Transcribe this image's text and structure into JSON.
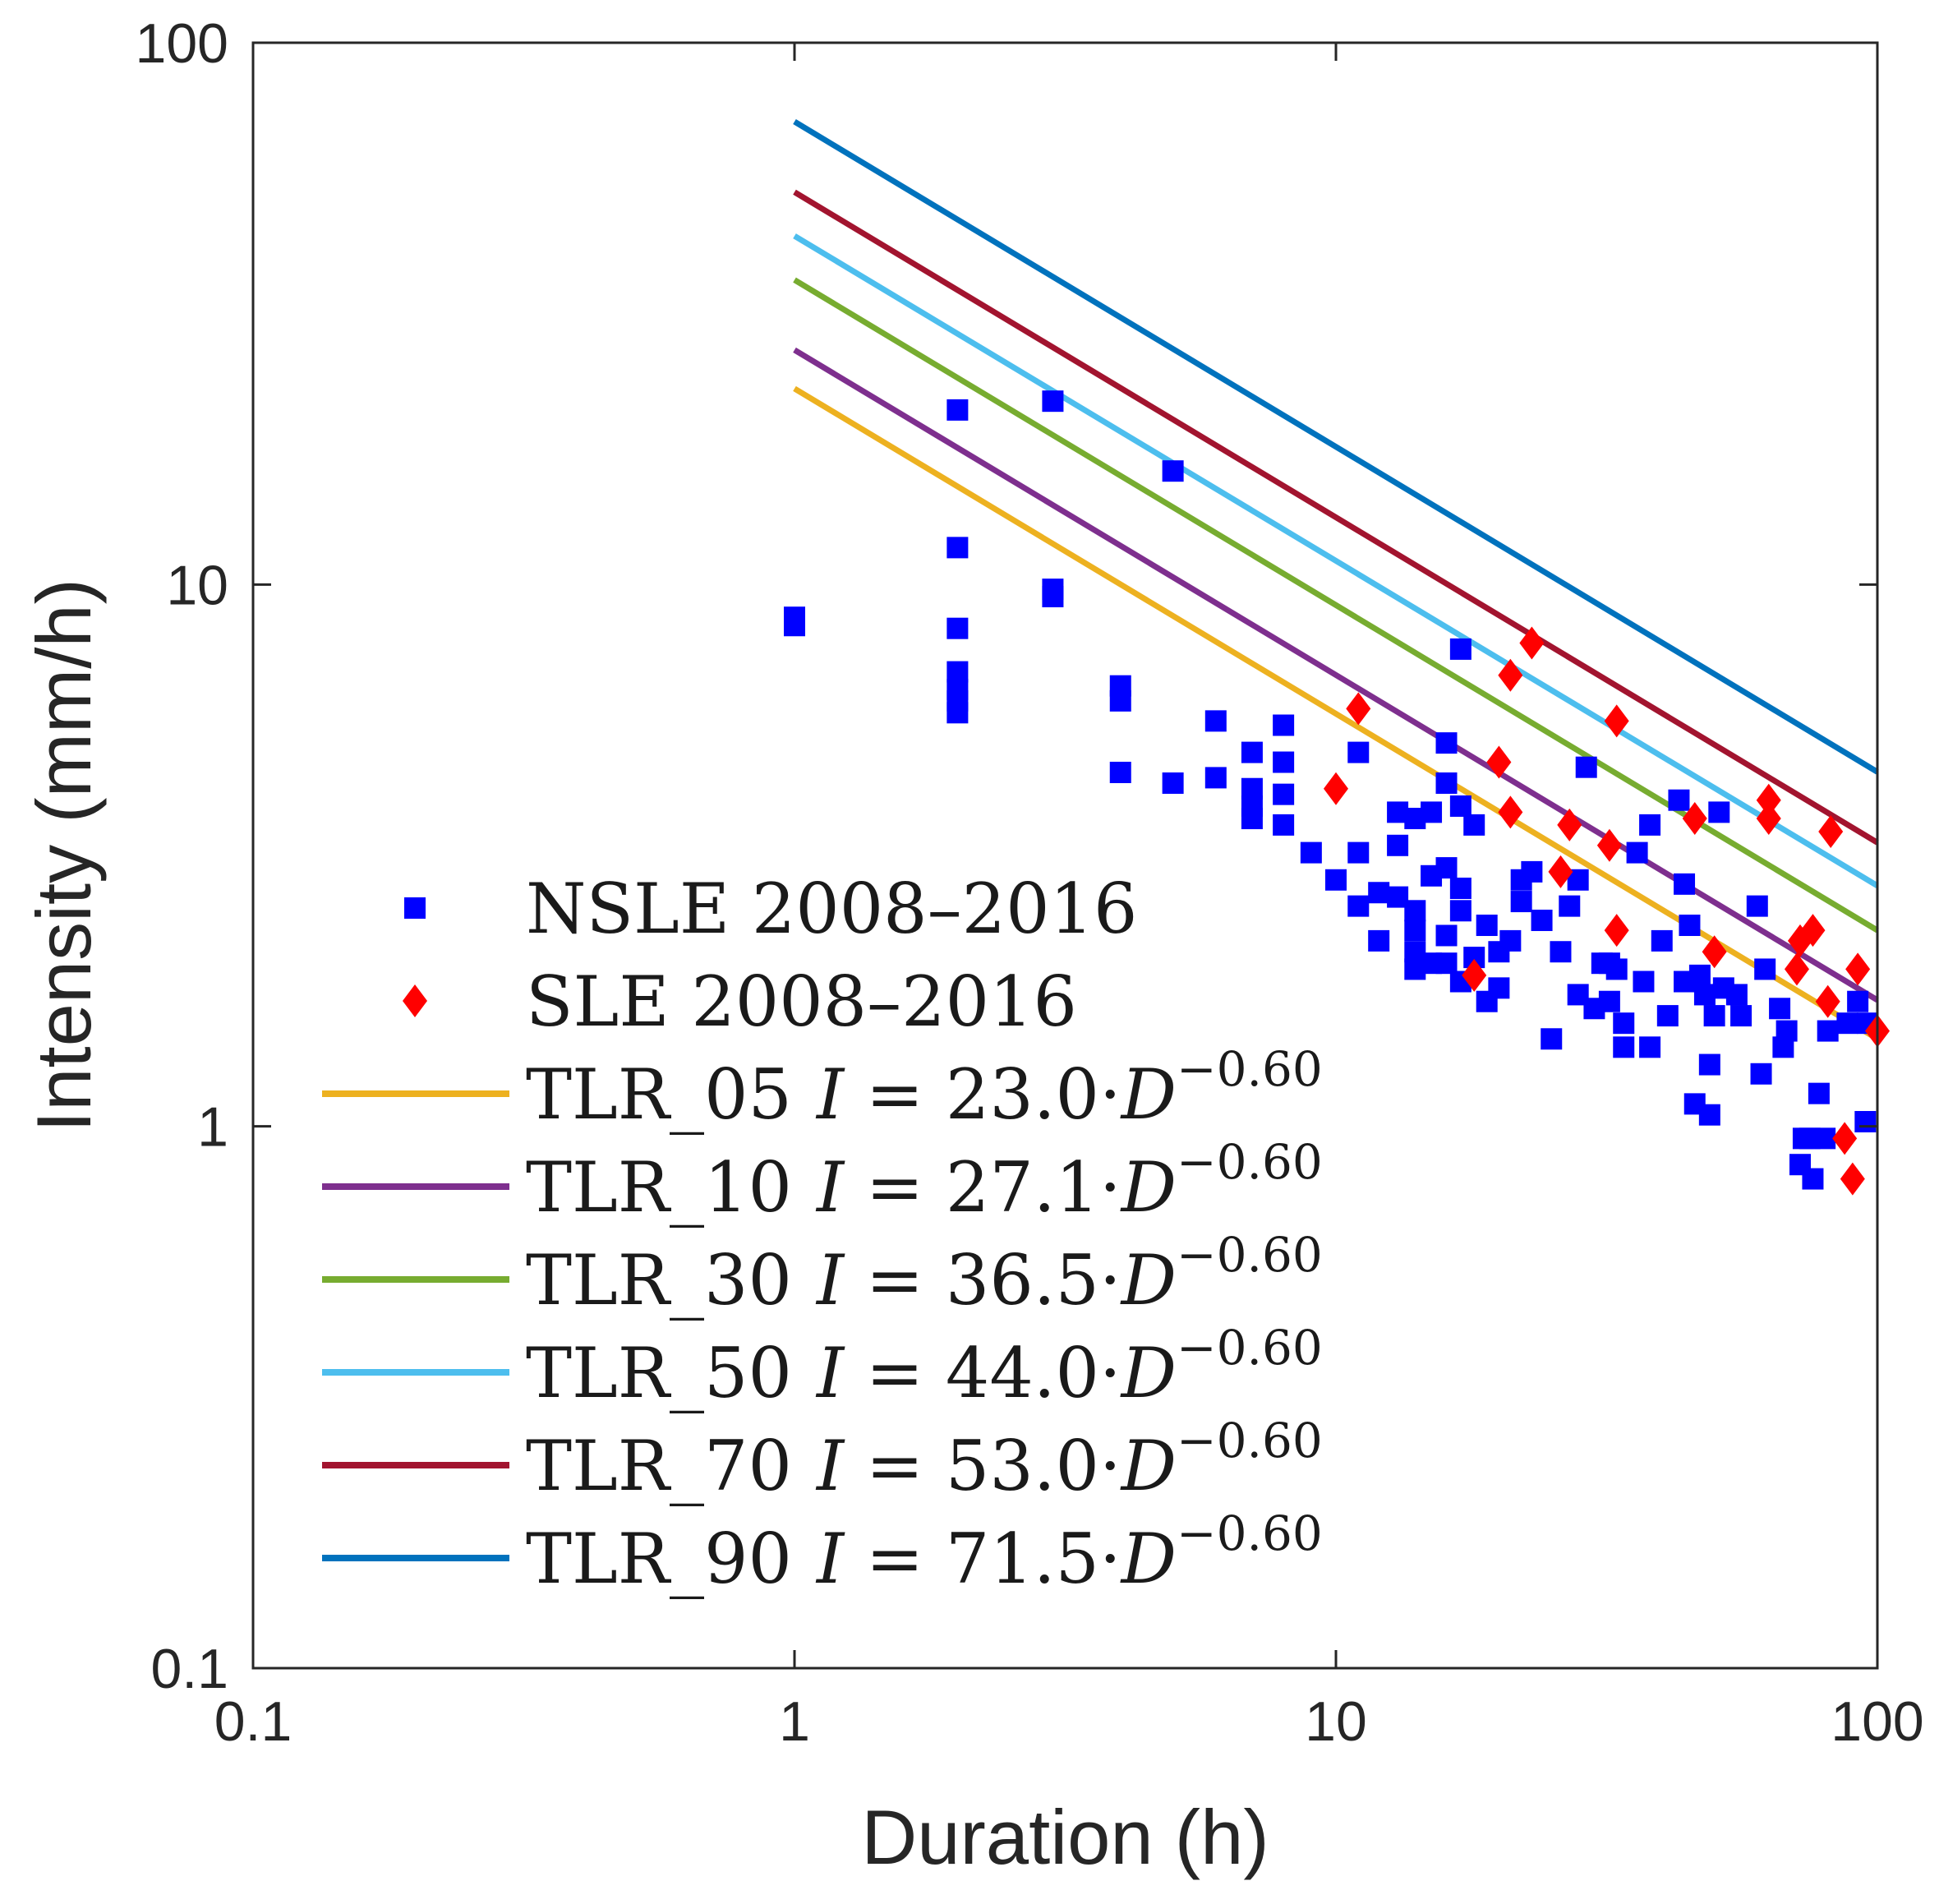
{
  "chart_data": {
    "type": "scatter",
    "title": "",
    "xlabel": "Duration (h)",
    "ylabel": "Intensity (mm/h)",
    "xscale": "log",
    "yscale": "log",
    "xlim": [
      0.1,
      100
    ],
    "ylim": [
      0.1,
      100
    ],
    "xticks": [
      0.1,
      1,
      10,
      100
    ],
    "yticks": [
      0.1,
      1,
      10,
      100
    ],
    "xtick_labels": [
      "0.1",
      "1",
      "10",
      "100"
    ],
    "ytick_labels": [
      "0.1",
      "1",
      "10",
      "100"
    ],
    "legend_position": "left, lower-middle",
    "series": [
      {
        "name": "NSLE 2008–2016",
        "kind": "scatter",
        "marker": "square",
        "color": "#0000ff",
        "points": [
          [
            1,
            8.4
          ],
          [
            1,
            8.7
          ],
          [
            2,
            21
          ],
          [
            2,
            11.7
          ],
          [
            2,
            8.3
          ],
          [
            2,
            6.9
          ],
          [
            2,
            6.4
          ],
          [
            2,
            6.1
          ],
          [
            2,
            5.8
          ],
          [
            3,
            21.8
          ],
          [
            3,
            9.8
          ],
          [
            3,
            9.5
          ],
          [
            4,
            6.5
          ],
          [
            4,
            6.1
          ],
          [
            4,
            4.5
          ],
          [
            5,
            16.2
          ],
          [
            5,
            4.3
          ],
          [
            6,
            5.6
          ],
          [
            6,
            4.4
          ],
          [
            7,
            4.9
          ],
          [
            7,
            4.2
          ],
          [
            7,
            3.9
          ],
          [
            7,
            3.7
          ],
          [
            8,
            5.5
          ],
          [
            8,
            4.7
          ],
          [
            8,
            4.1
          ],
          [
            8,
            3.6
          ],
          [
            9,
            3.2
          ],
          [
            10,
            2.85
          ],
          [
            11,
            4.9
          ],
          [
            11,
            3.2
          ],
          [
            11,
            2.55
          ],
          [
            12,
            2.7
          ],
          [
            12,
            2.2
          ],
          [
            13,
            3.8
          ],
          [
            13,
            3.3
          ],
          [
            13,
            2.65
          ],
          [
            14,
            3.7
          ],
          [
            14,
            2.5
          ],
          [
            14,
            2.3
          ],
          [
            14,
            2.1
          ],
          [
            14,
            1.95
          ],
          [
            15,
            3.8
          ],
          [
            15,
            2.9
          ],
          [
            15,
            2.0
          ],
          [
            16,
            5.1
          ],
          [
            16,
            4.3
          ],
          [
            16,
            3.0
          ],
          [
            16,
            2.25
          ],
          [
            16,
            2.0
          ],
          [
            17,
            7.6
          ],
          [
            17,
            3.9
          ],
          [
            17,
            2.75
          ],
          [
            17,
            2.5
          ],
          [
            17,
            1.85
          ],
          [
            18,
            3.6
          ],
          [
            18,
            2.05
          ],
          [
            19,
            2.35
          ],
          [
            19,
            1.7
          ],
          [
            20,
            2.1
          ],
          [
            20,
            1.8
          ],
          [
            21,
            2.2
          ],
          [
            22,
            2.85
          ],
          [
            22,
            2.6
          ],
          [
            23,
            2.95
          ],
          [
            24,
            2.4
          ],
          [
            25,
            1.45
          ],
          [
            26,
            2.1
          ],
          [
            27,
            2.55
          ],
          [
            28,
            2.85
          ],
          [
            28,
            1.75
          ],
          [
            29,
            4.6
          ],
          [
            30,
            1.65
          ],
          [
            31,
            2.0
          ],
          [
            32,
            2.0
          ],
          [
            32,
            1.7
          ],
          [
            33,
            1.95
          ],
          [
            34,
            1.55
          ],
          [
            34,
            1.4
          ],
          [
            36,
            3.2
          ],
          [
            37,
            1.85
          ],
          [
            38,
            1.4
          ],
          [
            38,
            3.6
          ],
          [
            40,
            2.2
          ],
          [
            41,
            1.6
          ],
          [
            43,
            4.0
          ],
          [
            44,
            2.8
          ],
          [
            44,
            1.85
          ],
          [
            45,
            2.35
          ],
          [
            46,
            1.1
          ],
          [
            47,
            1.9
          ],
          [
            48,
            1.75
          ],
          [
            49,
            1.05
          ],
          [
            49,
            1.3
          ],
          [
            50,
            1.6
          ],
          [
            51,
            3.8
          ],
          [
            52,
            1.8
          ],
          [
            55,
            1.75
          ],
          [
            56,
            1.6
          ],
          [
            60,
            2.55
          ],
          [
            61,
            1.25
          ],
          [
            62,
            1.95
          ],
          [
            66,
            1.65
          ],
          [
            67,
            1.4
          ],
          [
            68,
            1.5
          ],
          [
            72,
            0.85
          ],
          [
            73,
            0.95
          ],
          [
            75,
            0.95
          ],
          [
            76,
            0.8
          ],
          [
            78,
            1.15
          ],
          [
            80,
            0.95
          ],
          [
            81,
            1.5
          ],
          [
            88,
            1.55
          ],
          [
            92,
            1.7
          ],
          [
            95,
            1.02
          ],
          [
            96,
            1.55
          ]
        ]
      },
      {
        "name": "SLE 2008–2016",
        "kind": "scatter",
        "marker": "diamond",
        "color": "#ff0000",
        "points": [
          [
            10,
            4.2
          ],
          [
            11,
            5.9
          ],
          [
            18,
            1.9
          ],
          [
            20,
            4.7
          ],
          [
            21,
            3.8
          ],
          [
            21,
            6.8
          ],
          [
            23,
            7.8
          ],
          [
            26,
            2.95
          ],
          [
            27,
            3.6
          ],
          [
            32,
            3.3
          ],
          [
            33,
            2.3
          ],
          [
            33,
            5.6
          ],
          [
            46,
            3.7
          ],
          [
            50,
            2.1
          ],
          [
            63,
            4.0
          ],
          [
            63,
            3.7
          ],
          [
            71,
            1.95
          ],
          [
            72,
            2.2
          ],
          [
            76,
            2.3
          ],
          [
            81,
            1.7
          ],
          [
            82,
            3.5
          ],
          [
            87,
            0.95
          ],
          [
            90,
            0.8
          ],
          [
            92,
            1.95
          ],
          [
            100,
            1.5
          ]
        ]
      },
      {
        "name": "TLR_05",
        "kind": "line",
        "color": "#edb120",
        "coefficient": 23.0,
        "exponent": -0.6,
        "x": [
          1,
          100
        ],
        "values": [
          23.0,
          1.45
        ]
      },
      {
        "name": "TLR_10",
        "kind": "line",
        "color": "#7e2f8e",
        "coefficient": 27.1,
        "exponent": -0.6,
        "x": [
          1,
          100
        ],
        "values": [
          27.1,
          1.71
        ]
      },
      {
        "name": "TLR_30",
        "kind": "line",
        "color": "#77ac30",
        "coefficient": 36.5,
        "exponent": -0.6,
        "x": [
          1,
          100
        ],
        "values": [
          36.5,
          2.3
        ]
      },
      {
        "name": "TLR_50",
        "kind": "line",
        "color": "#4dbeee",
        "coefficient": 44.0,
        "exponent": -0.6,
        "x": [
          1,
          100
        ],
        "values": [
          44.0,
          2.78
        ]
      },
      {
        "name": "TLR_70",
        "kind": "line",
        "color": "#a2142f",
        "coefficient": 53.0,
        "exponent": -0.6,
        "x": [
          1,
          100
        ],
        "values": [
          53.0,
          3.34
        ]
      },
      {
        "name": "TLR_90",
        "kind": "line",
        "color": "#0072bd",
        "coefficient": 71.5,
        "exponent": -0.6,
        "x": [
          1,
          100
        ],
        "values": [
          71.5,
          4.51
        ]
      }
    ],
    "legend": [
      {
        "label": "NSLE 2008–2016",
        "formula": ""
      },
      {
        "label": "SLE 2008–2016",
        "formula": ""
      },
      {
        "label": "TLR_05",
        "formula_prefix": "I",
        "formula_mid": " = 23.0·",
        "formula_var": "D",
        "formula_exp": "−0.60"
      },
      {
        "label": "TLR_10",
        "formula_prefix": "I",
        "formula_mid": " = 27.1·",
        "formula_var": "D",
        "formula_exp": "−0.60"
      },
      {
        "label": "TLR_30",
        "formula_prefix": "I",
        "formula_mid": " = 36.5·",
        "formula_var": "D",
        "formula_exp": "−0.60"
      },
      {
        "label": "TLR_50",
        "formula_prefix": "I",
        "formula_mid": " = 44.0·",
        "formula_var": "D",
        "formula_exp": "−0.60"
      },
      {
        "label": "TLR_70",
        "formula_prefix": "I",
        "formula_mid": " = 53.0·",
        "formula_var": "D",
        "formula_exp": "−0.60"
      },
      {
        "label": "TLR_90",
        "formula_prefix": "I",
        "formula_mid": " = 71.5·",
        "formula_var": "D",
        "formula_exp": "−0.60"
      }
    ]
  }
}
